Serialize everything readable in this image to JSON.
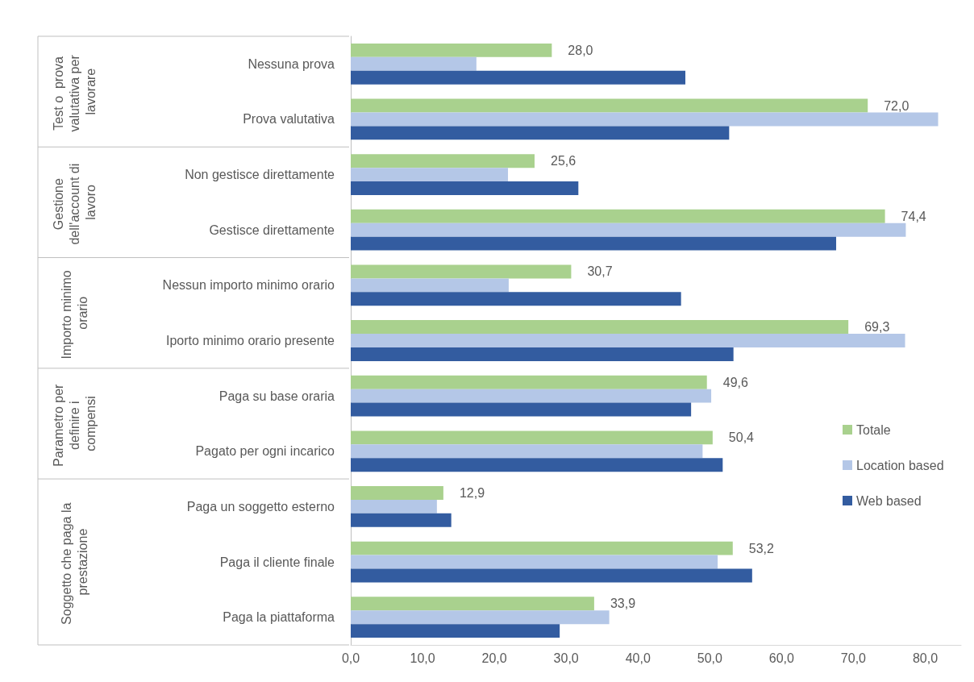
{
  "chart_data": {
    "type": "bar",
    "orientation": "horizontal",
    "categories": [
      "Nessuna prova",
      "Prova valutativa",
      "Non gestisce direttamente",
      "Gestisce direttamente",
      "Nessun importo minimo orario",
      "Iporto minimo orario presente",
      "Paga su base oraria",
      "Pagato per ogni incarico",
      "Paga un soggetto esterno",
      "Paga il cliente finale",
      "Paga la piattaforma"
    ],
    "series": [
      {
        "name": "Totale",
        "color": "#a9d18e",
        "values": [
          28.0,
          72.0,
          25.6,
          74.4,
          30.7,
          69.3,
          49.6,
          50.4,
          12.9,
          53.2,
          33.9
        ],
        "value_labels": [
          "28,0",
          "72,0",
          "25,6",
          "74,4",
          "30,7",
          "69,3",
          "49,6",
          "50,4",
          "12,9",
          "53,2",
          "33,9"
        ]
      },
      {
        "name": "Location based",
        "color": "#b4c7e7",
        "values": [
          17.5,
          81.8,
          21.9,
          77.3,
          22.0,
          77.2,
          50.2,
          49.0,
          12.0,
          51.1,
          36.0
        ]
      },
      {
        "name": "Web based",
        "color": "#335ca0",
        "values": [
          46.6,
          52.7,
          31.7,
          67.6,
          46.0,
          53.3,
          47.4,
          51.8,
          14.0,
          55.9,
          29.1
        ]
      }
    ],
    "xlim": [
      0,
      85
    ],
    "xticks": [
      {
        "value": 0,
        "label": "0,0"
      },
      {
        "value": 10,
        "label": "10,0"
      },
      {
        "value": 20,
        "label": "20,0"
      },
      {
        "value": 30,
        "label": "30,0"
      },
      {
        "value": 40,
        "label": "40,0"
      },
      {
        "value": 50,
        "label": "50,0"
      },
      {
        "value": 60,
        "label": "60,0"
      },
      {
        "value": 70,
        "label": "70,0"
      },
      {
        "value": 80,
        "label": "80,0"
      }
    ],
    "annotations": [
      "Test o  prova valutativa per lavorare",
      "Gestione dell'account di lavoro",
      "Importo minimo orario",
      "Parametro per definire i compensi",
      "Soggetto che paga la prestazione"
    ],
    "grid": false,
    "legend": "right"
  }
}
